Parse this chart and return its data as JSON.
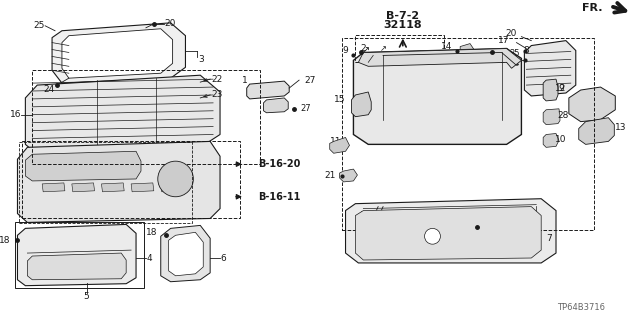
{
  "bg_color": "#ffffff",
  "fig_width": 6.4,
  "fig_height": 3.19,
  "dpi": 100,
  "lc": "#1a1a1a",
  "part_id": "TP64B3716",
  "ref_text1": "B-7-2",
  "ref_text2": "32118",
  "fr_text": "FR.",
  "b1620": "B-16-20",
  "b1611": "B-16-11"
}
